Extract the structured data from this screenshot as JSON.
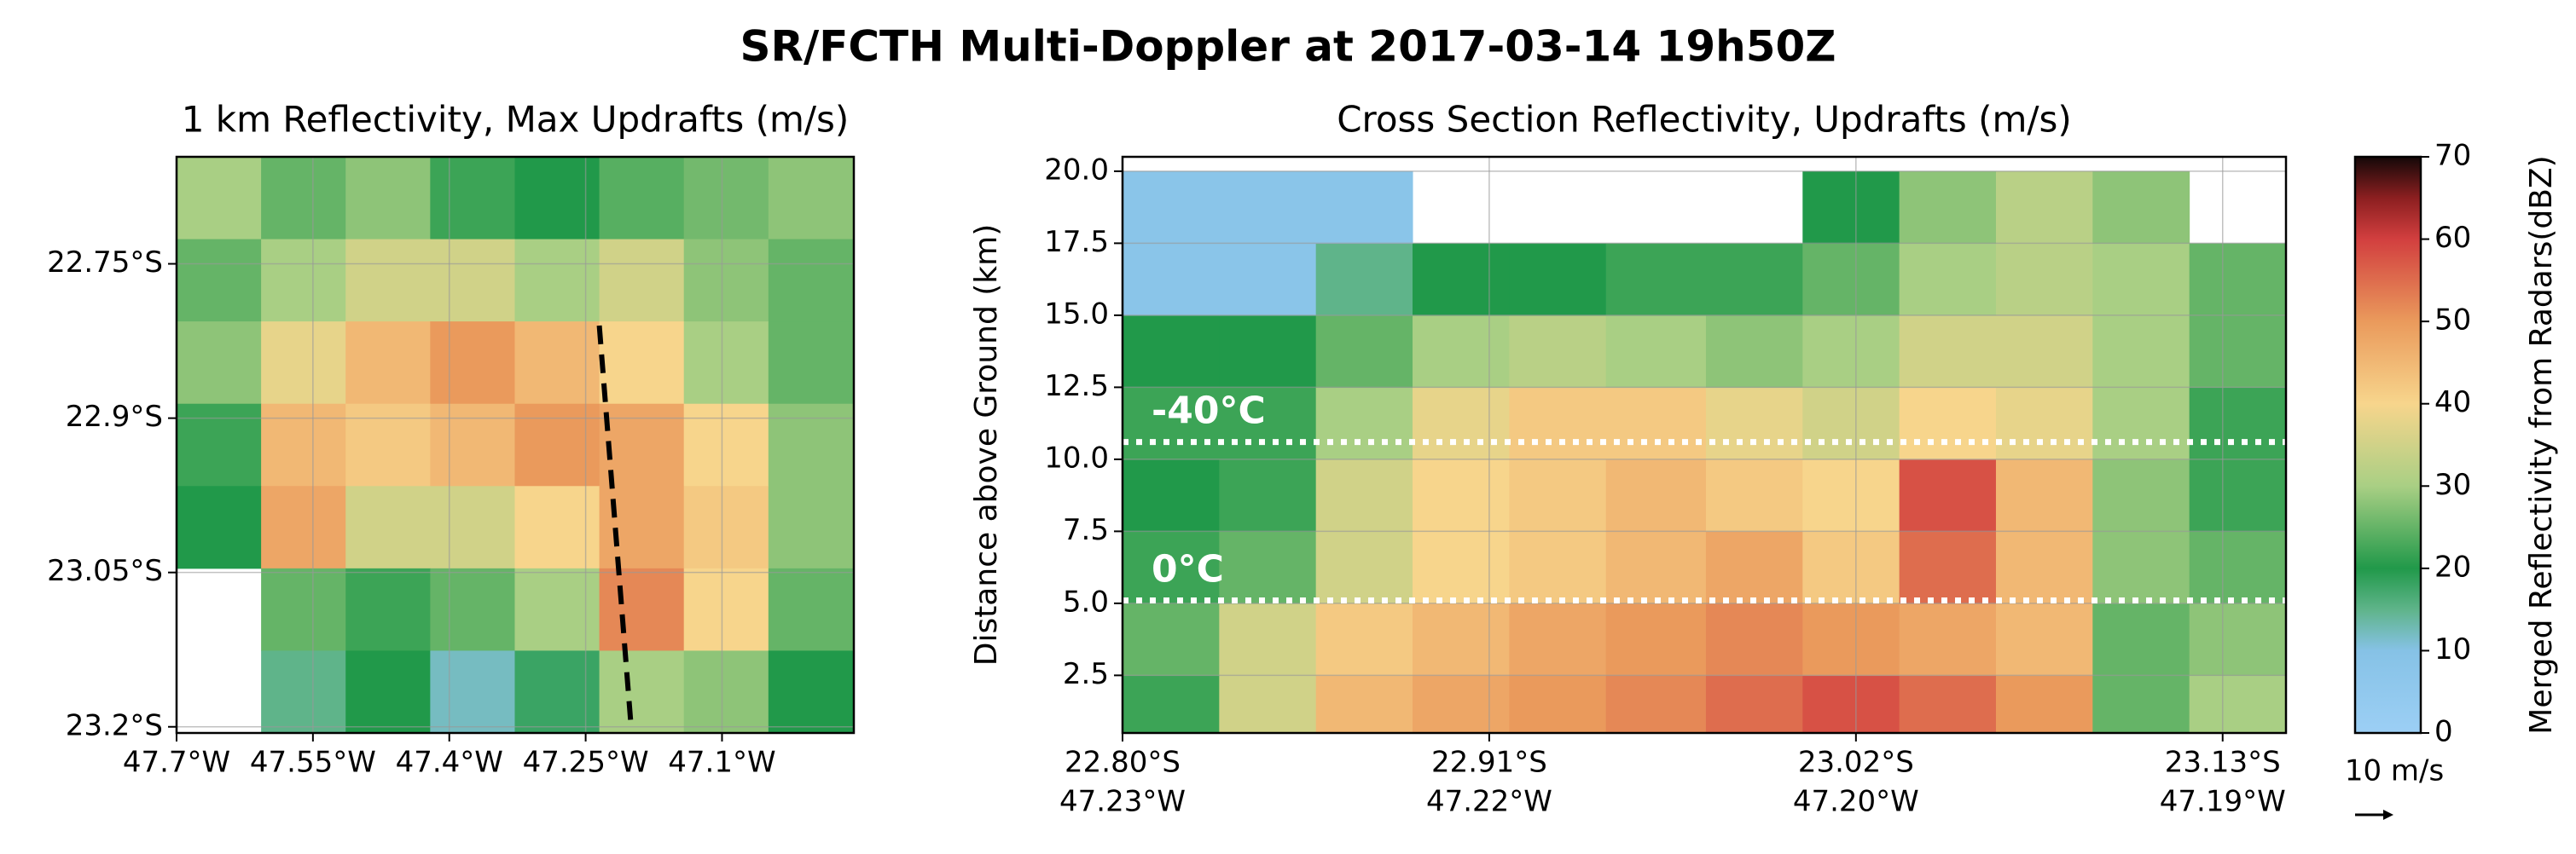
{
  "title": "SR/FCTH Multi-Doppler at 2017-03-14 19h50Z",
  "chart_data": [
    {
      "type": "heatmap",
      "title": "1 km Reflectivity, Max Updrafts (m/s)",
      "xlim": [
        -47.7,
        -46.955
      ],
      "ylim": [
        -23.206,
        -22.646
      ],
      "xticks": [
        {
          "value": -47.7,
          "label": "47.7°W"
        },
        {
          "value": -47.55,
          "label": "47.55°W"
        },
        {
          "value": -47.4,
          "label": "47.4°W"
        },
        {
          "value": -47.25,
          "label": "47.25°W"
        },
        {
          "value": -47.1,
          "label": "47.1°W"
        }
      ],
      "yticks": [
        {
          "value": -22.75,
          "label": "22.75°S"
        },
        {
          "value": -22.9,
          "label": "22.9°S"
        },
        {
          "value": -23.05,
          "label": "23.05°S"
        },
        {
          "value": -23.2,
          "label": "23.2°S"
        }
      ],
      "grid": true,
      "field": {
        "x_edges": [
          -47.7,
          -47.607,
          -47.514,
          -47.421,
          -47.328,
          -47.235,
          -47.142,
          -47.049,
          -46.955
        ],
        "y_edges": [
          -22.646,
          -22.726,
          -22.806,
          -22.886,
          -22.966,
          -23.046,
          -23.126,
          -23.206
        ],
        "values": [
          [
            30,
            25,
            28,
            22,
            20,
            24,
            26,
            28
          ],
          [
            25,
            30,
            35,
            35,
            30,
            35,
            28,
            25
          ],
          [
            28,
            38,
            45,
            50,
            45,
            40,
            30,
            25
          ],
          [
            22,
            45,
            42,
            45,
            50,
            48,
            40,
            28
          ],
          [
            20,
            48,
            35,
            35,
            40,
            48,
            42,
            28
          ],
          [
            null,
            25,
            22,
            25,
            30,
            52,
            40,
            25
          ],
          [
            null,
            15,
            20,
            12,
            18,
            30,
            28,
            20
          ]
        ]
      },
      "section_line": {
        "lon": [
          -47.235,
          -47.2
        ],
        "lat": [
          -22.81,
          -23.2
        ]
      }
    },
    {
      "type": "heatmap",
      "title": "Cross Section Reflectivity, Updrafts (m/s)",
      "ylabel": "Distance above Ground (km)",
      "xlim": [
        -22.8,
        -23.149
      ],
      "ylim": [
        0.5,
        20.5
      ],
      "xticks": [
        {
          "value": -22.8,
          "label": "22.80°S",
          "lon_label": "47.23°W"
        },
        {
          "value": -22.91,
          "label": "22.91°S",
          "lon_label": "47.22°W"
        },
        {
          "value": -23.02,
          "label": "23.02°S",
          "lon_label": "47.20°W"
        },
        {
          "value": -23.13,
          "label": "23.13°S",
          "lon_label": "47.19°W"
        }
      ],
      "yticks": [
        {
          "value": 2.5,
          "label": "2.5"
        },
        {
          "value": 5,
          "label": "5.0"
        },
        {
          "value": 7.5,
          "label": "7.5"
        },
        {
          "value": 10,
          "label": "10.0"
        },
        {
          "value": 12.5,
          "label": "12.5"
        },
        {
          "value": 15,
          "label": "15.0"
        },
        {
          "value": 17.5,
          "label": "17.5"
        },
        {
          "value": 20,
          "label": "20.0"
        }
      ],
      "grid": true,
      "field": {
        "x_edges": [
          -22.8,
          -22.829,
          -22.858,
          -22.887,
          -22.916,
          -22.945,
          -22.975,
          -23.004,
          -23.033,
          -23.062,
          -23.091,
          -23.12,
          -23.149
        ],
        "y_edges": [
          0.5,
          2.5,
          5,
          7.5,
          10,
          12.5,
          15,
          17.5,
          20
        ],
        "values": [
          [
            22,
            35,
            45,
            48,
            50,
            52,
            55,
            58,
            55,
            50,
            25,
            30
          ],
          [
            25,
            35,
            42,
            45,
            48,
            50,
            52,
            50,
            48,
            45,
            25,
            28
          ],
          [
            22,
            25,
            35,
            40,
            42,
            45,
            48,
            42,
            55,
            45,
            28,
            25
          ],
          [
            20,
            22,
            35,
            40,
            42,
            45,
            42,
            40,
            58,
            45,
            28,
            22
          ],
          [
            22,
            22,
            30,
            38,
            42,
            42,
            38,
            35,
            40,
            38,
            30,
            22
          ],
          [
            20,
            20,
            25,
            30,
            32,
            30,
            28,
            30,
            35,
            35,
            30,
            25
          ],
          [
            8,
            8,
            15,
            20,
            20,
            22,
            22,
            25,
            30,
            32,
            30,
            25
          ],
          [
            8,
            8,
            8,
            null,
            null,
            null,
            null,
            20,
            28,
            32,
            28,
            null
          ]
        ]
      },
      "isotherms": [
        {
          "label": "-40°C",
          "value": 10.6
        },
        {
          "label": "0°C",
          "value": 5.1
        }
      ]
    },
    {
      "type": "colorbar",
      "label": "Merged Reflectivity from Radars(dBZ)",
      "ylim": [
        0,
        70
      ],
      "yticks": [
        0,
        10,
        20,
        30,
        40,
        50,
        60,
        70
      ],
      "colormap": [
        {
          "value": 0,
          "color": "#9ccff5"
        },
        {
          "value": 10,
          "color": "#86c2e6"
        },
        {
          "value": 15,
          "color": "#5fb48a"
        },
        {
          "value": 20,
          "color": "#21994a"
        },
        {
          "value": 30,
          "color": "#a9cf84"
        },
        {
          "value": 40,
          "color": "#f7d58c"
        },
        {
          "value": 50,
          "color": "#ea9a5c"
        },
        {
          "value": 60,
          "color": "#d23f3f"
        },
        {
          "value": 65,
          "color": "#8c1f20"
        },
        {
          "value": 70,
          "color": "#140808"
        }
      ],
      "quiver_key": "10 m/s"
    }
  ]
}
